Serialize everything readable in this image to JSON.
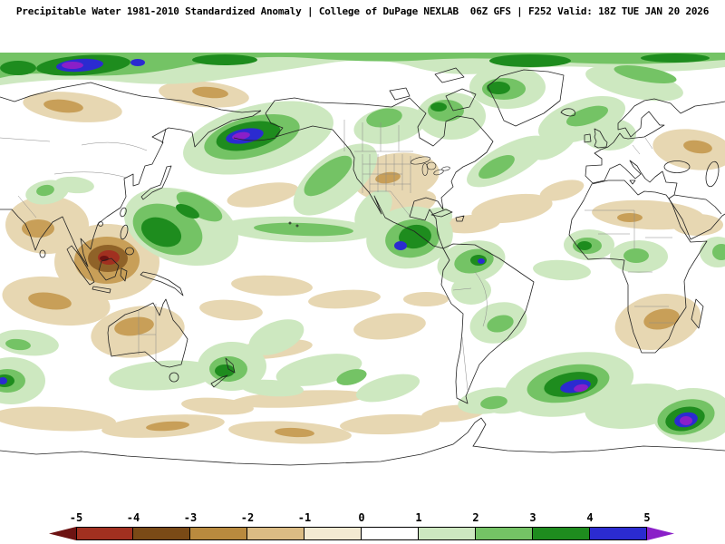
{
  "header": {
    "title": "Precipitable Water 1981-2010 Standardized Anomaly | College of DuPage NEXLAB  06Z GFS | F252 Valid: 18Z TUE JAN 20 2026"
  },
  "colorbar": {
    "labels": [
      "-5",
      "-4",
      "-3",
      "-2",
      "-1",
      "0",
      "1",
      "2",
      "3",
      "4",
      "5"
    ],
    "segments": [
      "#6d1312",
      "#a13020",
      "#7a4a16",
      "#b98a3e",
      "#dbbc84",
      "#f3ead2",
      "#ffffff",
      "#cde8c0",
      "#74c365",
      "#1e8c1e",
      "#2b2bd0",
      "#8a1fc8"
    ]
  },
  "map": {
    "palette": {
      "coast": "#222222",
      "border": "#8a8a8a",
      "g1": "#cde8c0",
      "g2": "#74c365",
      "g3": "#1e8c1e",
      "blue": "#2b2bd0",
      "purple": "#8a1fc8",
      "t1": "#e7d7b2",
      "t2": "#c89f58",
      "t3": "#8f6228",
      "red": "#a13020",
      "darkred": "#6d1312"
    }
  }
}
